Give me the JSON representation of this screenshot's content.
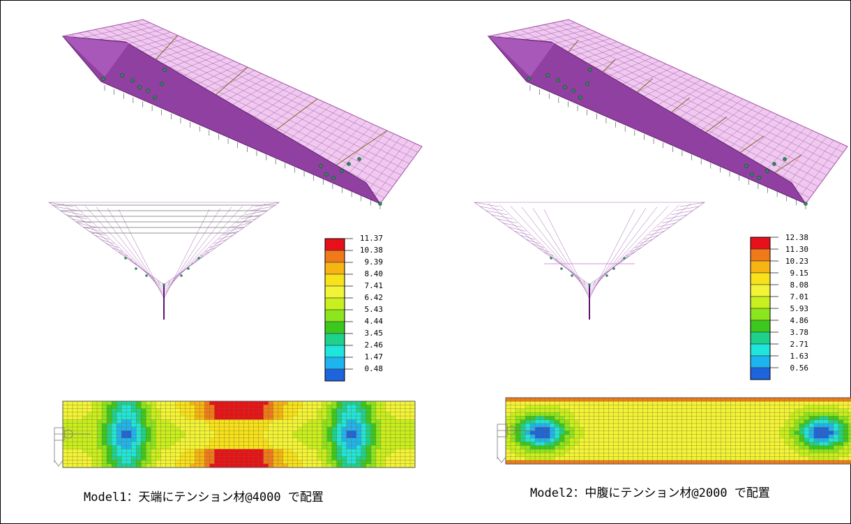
{
  "models": [
    {
      "caption": "Model1：天端にテンション材@4000 で配置",
      "legend": {
        "values": [
          "11.37",
          "10.38",
          "9.39",
          "8.40",
          "7.41",
          "6.42",
          "5.43",
          "4.44",
          "3.45",
          "2.46",
          "1.47",
          "0.48"
        ],
        "colors": [
          "#e8101a",
          "#f07a1a",
          "#f7b514",
          "#f7e21c",
          "#f2f537",
          "#c8f01e",
          "#8ce61e",
          "#3cc81e",
          "#1ed28c",
          "#1ee6dc",
          "#1eb4f0",
          "#1e64dc"
        ]
      },
      "contour_style": "tension at top edge"
    },
    {
      "caption": "Model2：中腹にテンション材@2000 で配置",
      "legend": {
        "values": [
          "12.38",
          "11.30",
          "10.23",
          "9.15",
          "8.08",
          "7.01",
          "5.93",
          "4.86",
          "3.78",
          "2.71",
          "1.63",
          "0.56"
        ],
        "colors": [
          "#e8101a",
          "#f07a1a",
          "#f7b514",
          "#f7e21c",
          "#f2f537",
          "#c8f01e",
          "#8ce61e",
          "#3cc81e",
          "#1ed28c",
          "#1ee6dc",
          "#1eb4f0",
          "#1e64dc"
        ]
      },
      "contour_style": "tension at mid-slope"
    }
  ]
}
